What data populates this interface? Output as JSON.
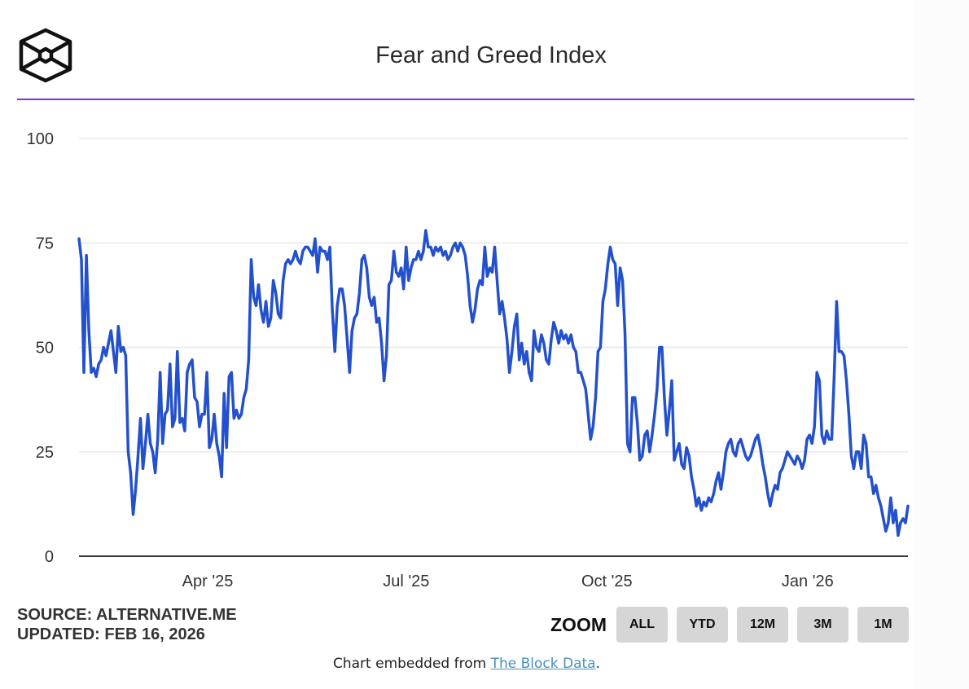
{
  "header": {
    "title": "Fear and Greed Index",
    "logo": "the-block-cube-logo",
    "accent_color": "#8a2fc9"
  },
  "footer": {
    "source": "SOURCE: ALTERNATIVE.ME",
    "updated": "UPDATED: FEB 16, 2026",
    "zoom_label": "ZOOM",
    "zoom_buttons": [
      "ALL",
      "YTD",
      "12M",
      "3M",
      "1M"
    ],
    "embed_prefix": "Chart embedded from ",
    "embed_link": "The Block Data",
    "embed_suffix": "."
  },
  "chart_data": {
    "type": "line",
    "title": "Fear and Greed Index",
    "xlabel": "",
    "ylabel": "",
    "ylim": [
      0,
      100
    ],
    "yticks": [
      0,
      25,
      50,
      75,
      100
    ],
    "xticks": [
      {
        "label": "Apr '25",
        "date": "2025-04-01"
      },
      {
        "label": "Jul '25",
        "date": "2025-07-01"
      },
      {
        "label": "Oct '25",
        "date": "2025-10-01"
      },
      {
        "label": "Jan '26",
        "date": "2026-01-01"
      }
    ],
    "x_range": [
      "2025-02-01",
      "2026-02-16"
    ],
    "grid": true,
    "legend": "none",
    "line_color": "#2350cc",
    "series": [
      {
        "name": "Fear and Greed Index",
        "start_date": "2025-02-01",
        "end_date": "2026-02-16",
        "values": [
          76,
          71,
          44,
          72,
          54,
          44,
          45,
          43,
          46,
          47,
          50,
          48,
          51,
          54,
          49,
          44,
          55,
          49,
          50,
          48,
          25,
          20,
          10,
          16,
          24,
          33,
          21,
          27,
          34,
          27,
          25,
          20,
          28,
          44,
          27,
          34,
          35,
          46,
          31,
          33,
          49,
          32,
          33,
          30,
          44,
          46,
          47,
          38,
          37,
          31,
          34,
          34,
          44,
          26,
          28,
          34,
          27,
          24,
          19,
          39,
          26,
          43,
          44,
          33,
          35,
          33,
          34,
          38,
          40,
          47,
          71,
          62,
          60,
          65,
          59,
          56,
          61,
          55,
          57,
          66,
          63,
          58,
          57,
          66,
          70,
          71,
          70,
          71,
          73,
          71,
          70,
          73,
          74,
          74,
          73,
          72,
          76,
          68,
          74,
          73,
          73,
          71,
          74,
          59,
          49,
          60,
          64,
          64,
          60,
          52,
          44,
          54,
          57,
          58,
          63,
          71,
          72,
          69,
          62,
          60,
          62,
          56,
          57,
          51,
          42,
          48,
          65,
          66,
          73,
          68,
          67,
          69,
          64,
          74,
          66,
          69,
          71,
          71,
          73,
          71,
          73,
          78,
          74,
          74,
          72,
          74,
          73,
          74,
          72,
          73,
          71,
          72,
          74,
          75,
          73,
          75,
          74,
          72,
          67,
          60,
          56,
          59,
          64,
          66,
          65,
          74,
          67,
          69,
          68,
          74,
          66,
          58,
          61,
          57,
          52,
          44,
          49,
          55,
          58,
          47,
          51,
          46,
          49,
          44,
          42,
          54,
          50,
          49,
          53,
          51,
          47,
          46,
          52,
          56,
          54,
          51,
          54,
          52,
          53,
          51,
          53,
          50,
          49,
          44,
          44,
          42,
          40,
          34,
          28,
          31,
          38,
          49,
          50,
          61,
          64,
          70,
          74,
          71,
          70,
          60,
          69,
          66,
          53,
          27,
          25,
          38,
          38,
          32,
          23,
          24,
          29,
          30,
          25,
          29,
          34,
          40,
          50,
          50,
          38,
          29,
          35,
          42,
          23,
          25,
          27,
          22,
          21,
          26,
          24,
          19,
          16,
          12,
          14,
          11,
          13,
          12,
          14,
          13,
          15,
          18,
          20,
          16,
          20,
          25,
          27,
          28,
          25,
          24,
          27,
          28,
          26,
          24,
          23,
          24,
          26,
          28,
          29,
          26,
          22,
          19,
          15,
          12,
          15,
          17,
          16,
          20,
          21,
          23,
          25,
          24,
          23,
          22,
          24,
          23,
          21,
          23,
          28,
          29,
          27,
          31,
          44,
          42,
          29,
          27,
          30,
          28,
          28,
          43,
          61,
          49,
          49,
          48,
          42,
          34,
          24,
          21,
          25,
          25,
          21,
          29,
          27,
          19,
          19,
          15,
          17,
          14,
          12,
          9,
          6,
          8,
          14,
          8,
          11,
          5,
          8,
          9,
          8,
          12
        ]
      }
    ]
  }
}
